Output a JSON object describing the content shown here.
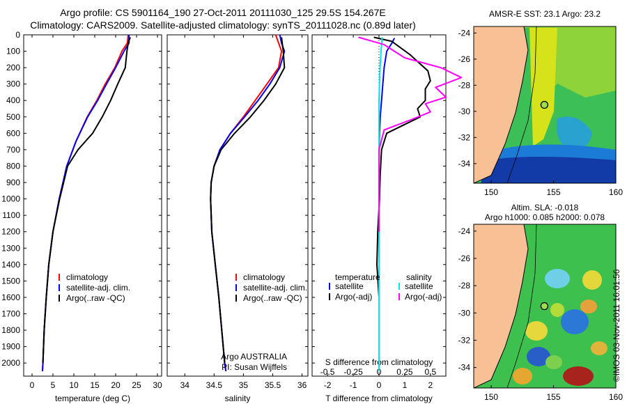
{
  "header": {
    "line1": "Argo profile: CS 5901164_190 27-Oct-2011 20111030_125 29.5S 154.267E",
    "line2": "Climatology: CARS2009. Satellite-adjusted climatology: synTS_20111028.nc (0.89d later)"
  },
  "colors": {
    "climatology": "#ff0000",
    "satellite": "#0000ff",
    "argo": "#000000",
    "satellite_salinity": "#00e5ee",
    "argo_salinity": "#ff00ff",
    "land": "#f7c095"
  },
  "stamp": "©IMOS 03-Nov-2011 16:01:56",
  "chart_data": [
    {
      "type": "line",
      "panel": "temperature",
      "xlabel": "temperature (deg C)",
      "ylabel": "",
      "xlim": [
        -2,
        31
      ],
      "ylim": [
        2080,
        0
      ],
      "xticks": [
        0,
        5,
        10,
        15,
        20,
        25,
        30
      ],
      "yticks": [
        0,
        100,
        200,
        300,
        400,
        500,
        600,
        700,
        800,
        900,
        1000,
        1100,
        1200,
        1300,
        1400,
        1500,
        1600,
        1700,
        1800,
        1900,
        2000
      ],
      "legend": [
        "climatology",
        "satellite-adj. clim.",
        "Argo(..raw -QC)"
      ],
      "legend_position": "lower-middle",
      "series": [
        {
          "name": "climatology",
          "color": "#ff0000",
          "points": [
            [
              23.0,
              0
            ],
            [
              22.8,
              50
            ],
            [
              21.5,
              100
            ],
            [
              19.8,
              200
            ],
            [
              17.5,
              300
            ],
            [
              15.5,
              400
            ],
            [
              13.2,
              500
            ],
            [
              10.5,
              650
            ],
            [
              8.3,
              800
            ],
            [
              6.5,
              1000
            ],
            [
              5.0,
              1200
            ],
            [
              4.0,
              1400
            ],
            [
              3.4,
              1600
            ],
            [
              2.9,
              1800
            ],
            [
              2.6,
              2000
            ],
            [
              2.5,
              2050
            ]
          ]
        },
        {
          "name": "satellite-adj. clim.",
          "color": "#0000ff",
          "points": [
            [
              23.2,
              0
            ],
            [
              23.2,
              50
            ],
            [
              22.0,
              100
            ],
            [
              20.0,
              200
            ],
            [
              17.8,
              300
            ],
            [
              15.7,
              400
            ],
            [
              13.3,
              500
            ],
            [
              10.5,
              650
            ],
            [
              8.3,
              800
            ],
            [
              6.5,
              1000
            ],
            [
              5.0,
              1200
            ],
            [
              4.0,
              1400
            ],
            [
              3.4,
              1600
            ],
            [
              2.9,
              1800
            ],
            [
              2.6,
              2000
            ],
            [
              2.5,
              2050
            ]
          ]
        },
        {
          "name": "Argo(..raw -QC)",
          "color": "#000000",
          "points": [
            [
              23.5,
              15
            ],
            [
              23.0,
              50
            ],
            [
              22.7,
              100
            ],
            [
              22.3,
              200
            ],
            [
              20.5,
              300
            ],
            [
              18.8,
              400
            ],
            [
              16.8,
              500
            ],
            [
              14.5,
              600
            ],
            [
              11.0,
              700
            ],
            [
              8.5,
              800
            ],
            [
              6.6,
              1000
            ],
            [
              5.0,
              1200
            ],
            [
              4.0,
              1400
            ],
            [
              3.4,
              1600
            ],
            [
              2.9,
              1800
            ],
            [
              2.6,
              2000
            ]
          ]
        }
      ]
    },
    {
      "type": "line",
      "panel": "salinity",
      "xlabel": "salinity",
      "xlim": [
        33.7,
        36.1
      ],
      "ylim": [
        2080,
        0
      ],
      "xticks": [
        34,
        34.5,
        35,
        35.5,
        36
      ],
      "legend": [
        "climatology",
        "satellite-adj. clim.",
        "Argo(..raw -QC)"
      ],
      "annotation": [
        "Argo AUSTRALIA",
        "PI: Susan Wijffels"
      ],
      "series": [
        {
          "name": "climatology",
          "color": "#ff0000",
          "points": [
            [
              35.55,
              0
            ],
            [
              35.6,
              50
            ],
            [
              35.65,
              100
            ],
            [
              35.6,
              200
            ],
            [
              35.4,
              300
            ],
            [
              35.2,
              400
            ],
            [
              35.0,
              500
            ],
            [
              34.78,
              600
            ],
            [
              34.6,
              700
            ],
            [
              34.5,
              800
            ],
            [
              34.45,
              900
            ],
            [
              34.44,
              1000
            ],
            [
              34.46,
              1200
            ],
            [
              34.52,
              1400
            ],
            [
              34.58,
              1600
            ],
            [
              34.63,
              1800
            ],
            [
              34.68,
              2000
            ],
            [
              34.7,
              2050
            ]
          ]
        },
        {
          "name": "satellite-adj. clim.",
          "color": "#0000ff",
          "points": [
            [
              35.62,
              0
            ],
            [
              35.65,
              50
            ],
            [
              35.7,
              100
            ],
            [
              35.62,
              200
            ],
            [
              35.45,
              300
            ],
            [
              35.25,
              400
            ],
            [
              35.02,
              500
            ],
            [
              34.78,
              600
            ],
            [
              34.6,
              700
            ],
            [
              34.5,
              800
            ],
            [
              34.45,
              900
            ],
            [
              34.44,
              1000
            ],
            [
              34.46,
              1200
            ],
            [
              34.52,
              1400
            ],
            [
              34.58,
              1600
            ],
            [
              34.63,
              1800
            ],
            [
              34.68,
              2000
            ],
            [
              34.7,
              2050
            ]
          ]
        },
        {
          "name": "Argo(..raw -QC)",
          "color": "#000000",
          "points": [
            [
              35.65,
              15
            ],
            [
              35.68,
              100
            ],
            [
              35.7,
              200
            ],
            [
              35.55,
              300
            ],
            [
              35.35,
              400
            ],
            [
              35.12,
              500
            ],
            [
              34.85,
              600
            ],
            [
              34.62,
              700
            ],
            [
              34.5,
              800
            ],
            [
              34.45,
              900
            ],
            [
              34.44,
              1000
            ],
            [
              34.46,
              1200
            ],
            [
              34.52,
              1400
            ],
            [
              34.58,
              1600
            ],
            [
              34.63,
              1800
            ],
            [
              34.68,
              2000
            ]
          ]
        }
      ]
    },
    {
      "type": "line",
      "panel": "difference",
      "xlabel_bottom": "T difference from climatology",
      "xlabel_top": "S difference from climatology",
      "xlim": [
        -2.6,
        2.6
      ],
      "ylim": [
        2080,
        0
      ],
      "xticks_T": [
        -2,
        -1,
        0,
        1,
        2
      ],
      "xticks_S_labels": [
        "-0.5",
        "-0.25",
        "0",
        "0.25",
        "0.5"
      ],
      "xticks_S_values": [
        -0.5,
        -0.25,
        0,
        0.25,
        0.5
      ],
      "legend": {
        "temperature": "temperature",
        "salinity": "salinity",
        "satellite": "satellite",
        "argo": "Argo(-adj)"
      },
      "series": [
        {
          "name": "satellite",
          "group": "temperature",
          "color": "#0000ff",
          "points": [
            [
              0.6,
              20
            ],
            [
              0.5,
              50
            ],
            [
              0.3,
              100
            ],
            [
              0.2,
              200
            ],
            [
              0.15,
              300
            ],
            [
              0.1,
              400
            ],
            [
              0.05,
              500
            ],
            [
              0.02,
              600
            ],
            [
              0,
              700
            ],
            [
              0,
              1000
            ],
            [
              0,
              2000
            ]
          ]
        },
        {
          "name": "Argo(-adj)",
          "group": "temperature",
          "color": "#000000",
          "points": [
            [
              -0.2,
              15
            ],
            [
              0.5,
              40
            ],
            [
              1.2,
              120
            ],
            [
              1.9,
              220
            ],
            [
              2.0,
              280
            ],
            [
              1.8,
              330
            ],
            [
              1.8,
              400
            ],
            [
              1.5,
              450
            ],
            [
              1.6,
              500
            ],
            [
              0.3,
              600
            ],
            [
              0.1,
              700
            ],
            [
              0.05,
              850
            ],
            [
              0.02,
              1000
            ],
            [
              -0.05,
              1200
            ],
            [
              -0.08,
              1400
            ],
            [
              0.0,
              1600
            ],
            [
              0.0,
              1800
            ],
            [
              0.0,
              1900
            ]
          ]
        },
        {
          "name": "satellite",
          "group": "salinity",
          "color": "#00e5ee",
          "points": [
            [
              0.03,
              15
            ],
            [
              0.02,
              100
            ],
            [
              0.01,
              200
            ],
            [
              0,
              400
            ],
            [
              0,
              1000
            ],
            [
              0,
              2000
            ],
            [
              0,
              2050
            ]
          ]
        },
        {
          "name": "Argo(-adj)",
          "group": "salinity",
          "color": "#ff00ff",
          "points": [
            [
              -0.2,
              15
            ],
            [
              0.05,
              60
            ],
            [
              0.25,
              140
            ],
            [
              0.6,
              200
            ],
            [
              0.8,
              260
            ],
            [
              0.55,
              320
            ],
            [
              0.65,
              380
            ],
            [
              0.45,
              420
            ],
            [
              0.5,
              470
            ],
            [
              0.3,
              520
            ],
            [
              0.05,
              580
            ],
            [
              0,
              700
            ],
            [
              0,
              1000
            ],
            [
              0,
              1200
            ]
          ]
        }
      ]
    },
    {
      "type": "heatmap",
      "panel": "map-sst",
      "title": "AMSR-E SST: 23.1  Argo: 23.2",
      "xlim": [
        148.6,
        160
      ],
      "ylim": [
        -35.5,
        -23.5
      ],
      "xticks": [
        150,
        155,
        160
      ],
      "yticks": [
        -24,
        -26,
        -28,
        -30,
        -32,
        -34
      ],
      "argo_position": {
        "lon": 154.267,
        "lat": -29.5
      }
    },
    {
      "type": "heatmap",
      "panel": "map-sla",
      "title_line1": "Altim. SLA: -0.018",
      "title_line2": "Argo h1000: 0.085 h2000: 0.078",
      "xlim": [
        148.6,
        160
      ],
      "ylim": [
        -35.5,
        -23.5
      ],
      "xticks": [
        150,
        155,
        160
      ],
      "yticks": [
        -24,
        -26,
        -28,
        -30,
        -32,
        -34
      ],
      "argo_position": {
        "lon": 154.267,
        "lat": -29.5
      }
    }
  ]
}
